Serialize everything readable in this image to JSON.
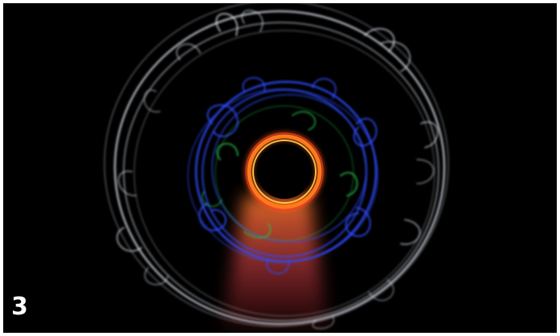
{
  "figure": {
    "number_label": "3"
  },
  "colors": {
    "background": "#000000",
    "outer_trails": "#dfe4ef",
    "mid_trails": "#2f4bff",
    "accent_trails": "#28c24a",
    "inner_ring": "#ff7a1a",
    "glow_beam": "#ff5a3a"
  }
}
